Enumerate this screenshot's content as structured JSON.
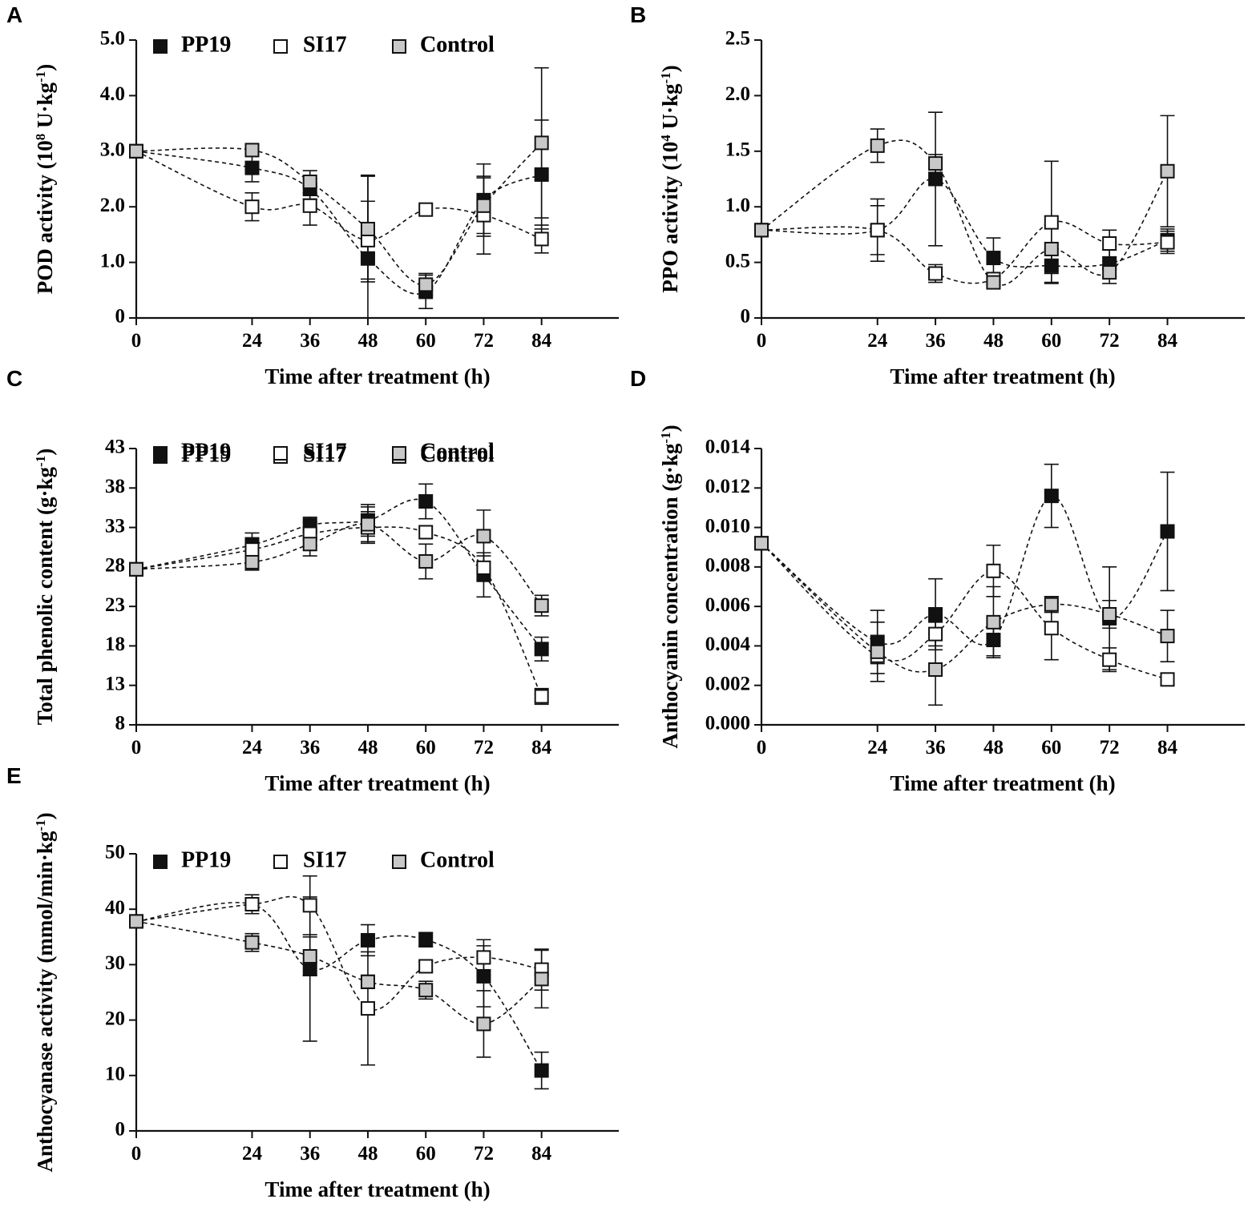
{
  "figure": {
    "title": ""
  },
  "chart_data": [
    {
      "panel": "A",
      "type": "line",
      "xlabel": "Time after treatment (h)",
      "ylabel_main": "POD  activity (10",
      "ylabel_sup1": "8",
      "ylabel_mid": " U·kg",
      "ylabel_sup2": "-1",
      "ylabel_end": ")",
      "xlim": [
        0,
        100
      ],
      "x_ticks": [
        0,
        24,
        36,
        48,
        60,
        72,
        84
      ],
      "x_tick_labels": [
        "0",
        "24",
        "36",
        "48",
        "60",
        "72",
        "84"
      ],
      "ylim": [
        0,
        5
      ],
      "y_ticks": [
        0,
        1,
        2,
        3,
        4,
        5
      ],
      "y_tick_labels": [
        "0",
        "1.0",
        "2.0",
        "3.0",
        "4.0",
        "5.0"
      ],
      "series": [
        {
          "name": "PP19",
          "fill": "#111111",
          "values": [
            3.0,
            2.7,
            2.32,
            1.07,
            0.47,
            2.12,
            2.58
          ],
          "errors": [
            0,
            0.25,
            0.18,
            1.5,
            0.3,
            0.65,
            0.98
          ]
        },
        {
          "name": "SI17",
          "fill": "#ffffff",
          "values": [
            3.0,
            2.0,
            2.02,
            1.4,
            1.95,
            1.85,
            1.42
          ],
          "errors": [
            0,
            0.25,
            0.35,
            0.7,
            0.0,
            0.7,
            0.25
          ]
        },
        {
          "name": "Control",
          "fill": "#c8c8c8",
          "values": [
            3.0,
            3.02,
            2.45,
            1.6,
            0.6,
            2.02,
            3.15
          ],
          "errors": [
            0,
            0.06,
            0.2,
            0.95,
            0.2,
            0.5,
            1.35
          ]
        }
      ]
    },
    {
      "panel": "B",
      "type": "line",
      "xlabel": "Time after treatment (h)",
      "ylabel_main": "PPO activity (10",
      "ylabel_sup1": "4",
      "ylabel_mid": " U·kg",
      "ylabel_sup2": "-1",
      "ylabel_end": ")",
      "xlim": [
        0,
        100
      ],
      "x_ticks": [
        0,
        24,
        36,
        48,
        60,
        72,
        84
      ],
      "x_tick_labels": [
        "0",
        "24",
        "36",
        "48",
        "60",
        "72",
        "84"
      ],
      "ylim": [
        0,
        2.5
      ],
      "y_ticks": [
        0,
        0.5,
        1.0,
        1.5,
        2.0,
        2.5
      ],
      "y_tick_labels": [
        "0",
        "0.5",
        "1.0",
        "1.5",
        "2.0",
        "2.5"
      ],
      "series": [
        {
          "name": "PP19",
          "fill": "#111111",
          "values": [
            0.79,
            0.79,
            1.25,
            0.54,
            0.47,
            0.49,
            0.7
          ],
          "errors": [
            0,
            0.28,
            0.6,
            0.18,
            0.15,
            0.12,
            0.1
          ]
        },
        {
          "name": "SI17",
          "fill": "#ffffff",
          "values": [
            0.79,
            0.79,
            0.4,
            0.35,
            0.86,
            0.67,
            0.68
          ],
          "errors": [
            0,
            0.22,
            0.08,
            0.05,
            0.55,
            0.12,
            0.1
          ]
        },
        {
          "name": "Control",
          "fill": "#c8c8c8",
          "values": [
            0.79,
            1.55,
            1.39,
            0.32,
            0.62,
            0.41,
            1.32
          ],
          "errors": [
            0,
            0.15,
            0.08,
            0.04,
            0.22,
            0.1,
            0.5
          ]
        }
      ]
    },
    {
      "panel": "C",
      "type": "line",
      "xlabel": "Time after treatment (h)",
      "ylabel_main": "Total phenolic content (g·kg",
      "ylabel_sup1": "",
      "ylabel_mid": "",
      "ylabel_sup2": "-1",
      "ylabel_end": ")",
      "xlim": [
        0,
        100
      ],
      "x_ticks": [
        0,
        24,
        36,
        48,
        60,
        72,
        84
      ],
      "x_tick_labels": [
        "0",
        "24",
        "36",
        "48",
        "60",
        "72",
        "84"
      ],
      "ylim": [
        8,
        43
      ],
      "y_ticks": [
        8,
        13,
        18,
        23,
        28,
        33,
        38,
        43
      ],
      "y_tick_labels": [
        "8",
        "13",
        "18",
        "23",
        "28",
        "33",
        "38",
        "43"
      ],
      "series": [
        {
          "name": "PP19",
          "fill": "#111111",
          "values": [
            27.7,
            30.8,
            33.3,
            33.9,
            36.3,
            27.0,
            17.6
          ],
          "errors": [
            0,
            1.5,
            1.0,
            2.0,
            2.2,
            2.8,
            1.5
          ]
        },
        {
          "name": "SI17",
          "fill": "#ffffff",
          "values": [
            27.7,
            30.2,
            32.2,
            33.0,
            32.4,
            27.9,
            11.6
          ],
          "errors": [
            0,
            1.5,
            1.5,
            2.0,
            0.0,
            1.5,
            1.0
          ]
        },
        {
          "name": "Control",
          "fill": "#c8c8c8",
          "values": [
            27.7,
            28.6,
            30.9,
            33.4,
            28.7,
            31.9,
            23.1
          ],
          "errors": [
            0,
            1.0,
            1.5,
            2.2,
            2.2,
            3.3,
            1.3
          ]
        }
      ]
    },
    {
      "panel": "D",
      "type": "line",
      "xlabel": "Time after treatment (h)",
      "ylabel_main": "Anthocyanin concentration (g·kg",
      "ylabel_sup1": "",
      "ylabel_mid": "",
      "ylabel_sup2": "-1",
      "ylabel_end": ")",
      "xlim": [
        0,
        100
      ],
      "x_ticks": [
        0,
        24,
        36,
        48,
        60,
        72,
        84
      ],
      "x_tick_labels": [
        "0",
        "24",
        "36",
        "48",
        "60",
        "72",
        "84"
      ],
      "ylim": [
        0,
        0.014
      ],
      "y_ticks": [
        0,
        0.002,
        0.004,
        0.006,
        0.008,
        0.01,
        0.012,
        0.014
      ],
      "y_tick_labels": [
        "0.000",
        "0.002",
        "0.004",
        "0.006",
        "0.008",
        "0.010",
        "0.012",
        "0.014"
      ],
      "series": [
        {
          "name": "PP19",
          "fill": "#111111",
          "values": [
            0.0092,
            0.0042,
            0.0056,
            0.0043,
            0.0116,
            0.0054,
            0.0098
          ],
          "errors": [
            0,
            0.0016,
            0.0018,
            0.0008,
            0.0016,
            0.0026,
            0.003
          ]
        },
        {
          "name": "SI17",
          "fill": "#ffffff",
          "values": [
            0.0092,
            0.0035,
            0.0046,
            0.0078,
            0.0049,
            0.0033,
            0.0023
          ],
          "errors": [
            0,
            0.0004,
            0.0006,
            0.0013,
            0.0016,
            0.0006,
            0.0003
          ]
        },
        {
          "name": "Control",
          "fill": "#c8c8c8",
          "values": [
            0.0092,
            0.0037,
            0.0028,
            0.0052,
            0.0061,
            0.0056,
            0.0045
          ],
          "errors": [
            0,
            0.0015,
            0.0018,
            0.0018,
            0.0004,
            0.0007,
            0.0013
          ]
        }
      ]
    },
    {
      "panel": "E",
      "type": "line",
      "xlabel": "Time after treatment (h)",
      "ylabel_main": "Anthocyanase activity (mmol/min·kg",
      "ylabel_sup1": "",
      "ylabel_mid": "",
      "ylabel_sup2": "-1",
      "ylabel_end": ")",
      "xlim": [
        0,
        100
      ],
      "x_ticks": [
        0,
        24,
        36,
        48,
        60,
        72,
        84
      ],
      "x_tick_labels": [
        "0",
        "24",
        "36",
        "48",
        "60",
        "72",
        "84"
      ],
      "ylim": [
        0,
        50
      ],
      "y_ticks": [
        0,
        10,
        20,
        30,
        40,
        50
      ],
      "y_tick_labels": [
        "0",
        "10",
        "20",
        "30",
        "40",
        "50"
      ],
      "series": [
        {
          "name": "PP19",
          "fill": "#111111",
          "values": [
            37.8,
            40.9,
            29.2,
            34.4,
            34.5,
            27.9,
            10.9
          ],
          "errors": [
            0,
            1.7,
            13.0,
            2.8,
            1.3,
            5.5,
            3.3
          ]
        },
        {
          "name": "SI17",
          "fill": "#ffffff",
          "values": [
            37.8,
            40.9,
            40.7,
            22.1,
            29.7,
            31.3,
            29.1
          ],
          "errors": [
            0,
            1.0,
            5.3,
            10.2,
            0.9,
            3.2,
            3.7
          ]
        },
        {
          "name": "Control",
          "fill": "#c8c8c8",
          "values": [
            37.8,
            34.0,
            31.5,
            26.9,
            25.4,
            19.3,
            27.4
          ],
          "errors": [
            0,
            1.6,
            3.5,
            1.2,
            1.6,
            6.0,
            5.2
          ]
        }
      ]
    }
  ]
}
